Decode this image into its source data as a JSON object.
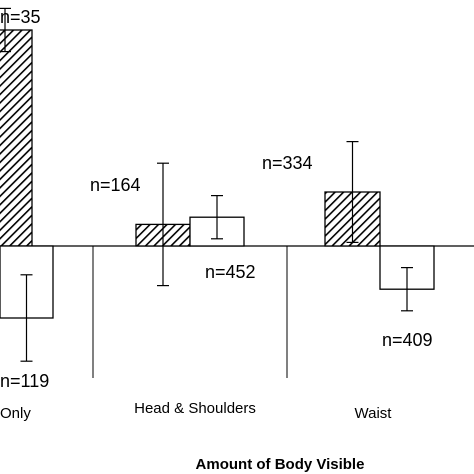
{
  "chart_data": {
    "type": "bar",
    "xlabel": "Amount of Body Visible",
    "ylabel": "",
    "title": "",
    "categories": [
      "Only",
      "Head & Shoulders",
      "Waist"
    ],
    "ylim": [
      -1.7,
      3.2
    ],
    "series": [
      {
        "pattern": "hatched",
        "values": [
          3.0,
          0.3,
          0.75
        ],
        "errors": [
          0.3,
          0.85,
          0.7
        ],
        "n_labels": [
          "n=35",
          "n=164",
          "n=334"
        ]
      },
      {
        "pattern": "open",
        "values": [
          -1.0,
          0.4,
          -0.6
        ],
        "errors": [
          0.6,
          0.3,
          0.3
        ],
        "n_labels": [
          "n=119",
          "n=452",
          "n=409"
        ]
      }
    ]
  }
}
